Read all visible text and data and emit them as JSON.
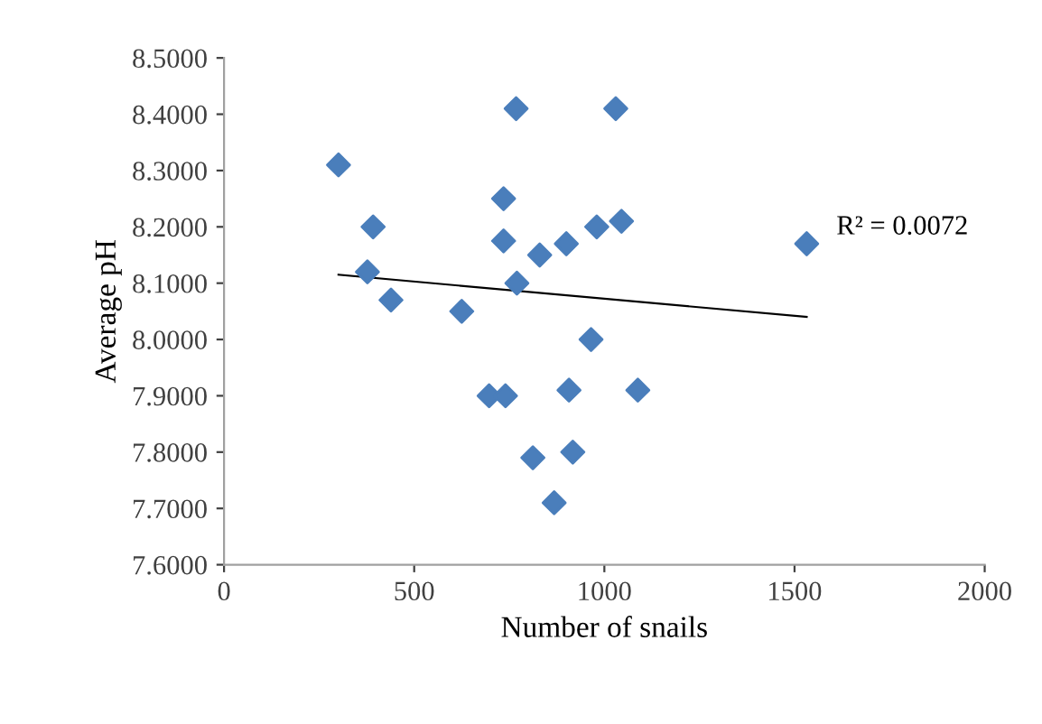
{
  "chart_data": {
    "type": "scatter",
    "xlabel": "Number of snails",
    "ylabel": "Average pH",
    "marker": "diamond",
    "grid": false,
    "legend": false,
    "xlim": [
      0,
      2000
    ],
    "xticks": [
      0,
      500,
      1000,
      1500,
      2000
    ],
    "ylim": [
      7.6,
      8.5
    ],
    "yticks": [
      {
        "value": 7.6,
        "label": "7.6000"
      },
      {
        "value": 7.7,
        "label": "7.7000"
      },
      {
        "value": 7.8,
        "label": "7.8000"
      },
      {
        "value": 7.9,
        "label": "7.9000"
      },
      {
        "value": 8.0,
        "label": "8.0000"
      },
      {
        "value": 8.1,
        "label": "8.1000"
      },
      {
        "value": 8.2,
        "label": "8.2000"
      },
      {
        "value": 8.3,
        "label": "8.3000"
      },
      {
        "value": 8.4,
        "label": "8.4000"
      },
      {
        "value": 8.5,
        "label": "8.5000"
      }
    ],
    "series": [
      {
        "color": "#4a7ebb",
        "x": [
          301,
          377,
          392,
          439,
          625,
          697,
          735,
          740,
          735,
          768,
          770,
          812,
          830,
          868,
          900,
          907,
          917,
          965,
          980,
          1030,
          1045,
          1088,
          1532
        ],
        "values": [
          8.31,
          8.12,
          8.2,
          8.07,
          8.05,
          7.9,
          8.25,
          7.9,
          8.175,
          8.41,
          8.1,
          7.79,
          8.15,
          7.71,
          8.17,
          7.91,
          7.8,
          8.0,
          8.2,
          8.41,
          8.21,
          7.91,
          8.17
        ]
      },
      {
        "type": "line",
        "color": "#000000",
        "marker": "none",
        "x": [
          301,
          1532
        ],
        "values": [
          8.115,
          8.04
        ]
      }
    ],
    "annotations": [
      "R² = 0.0072"
    ]
  }
}
